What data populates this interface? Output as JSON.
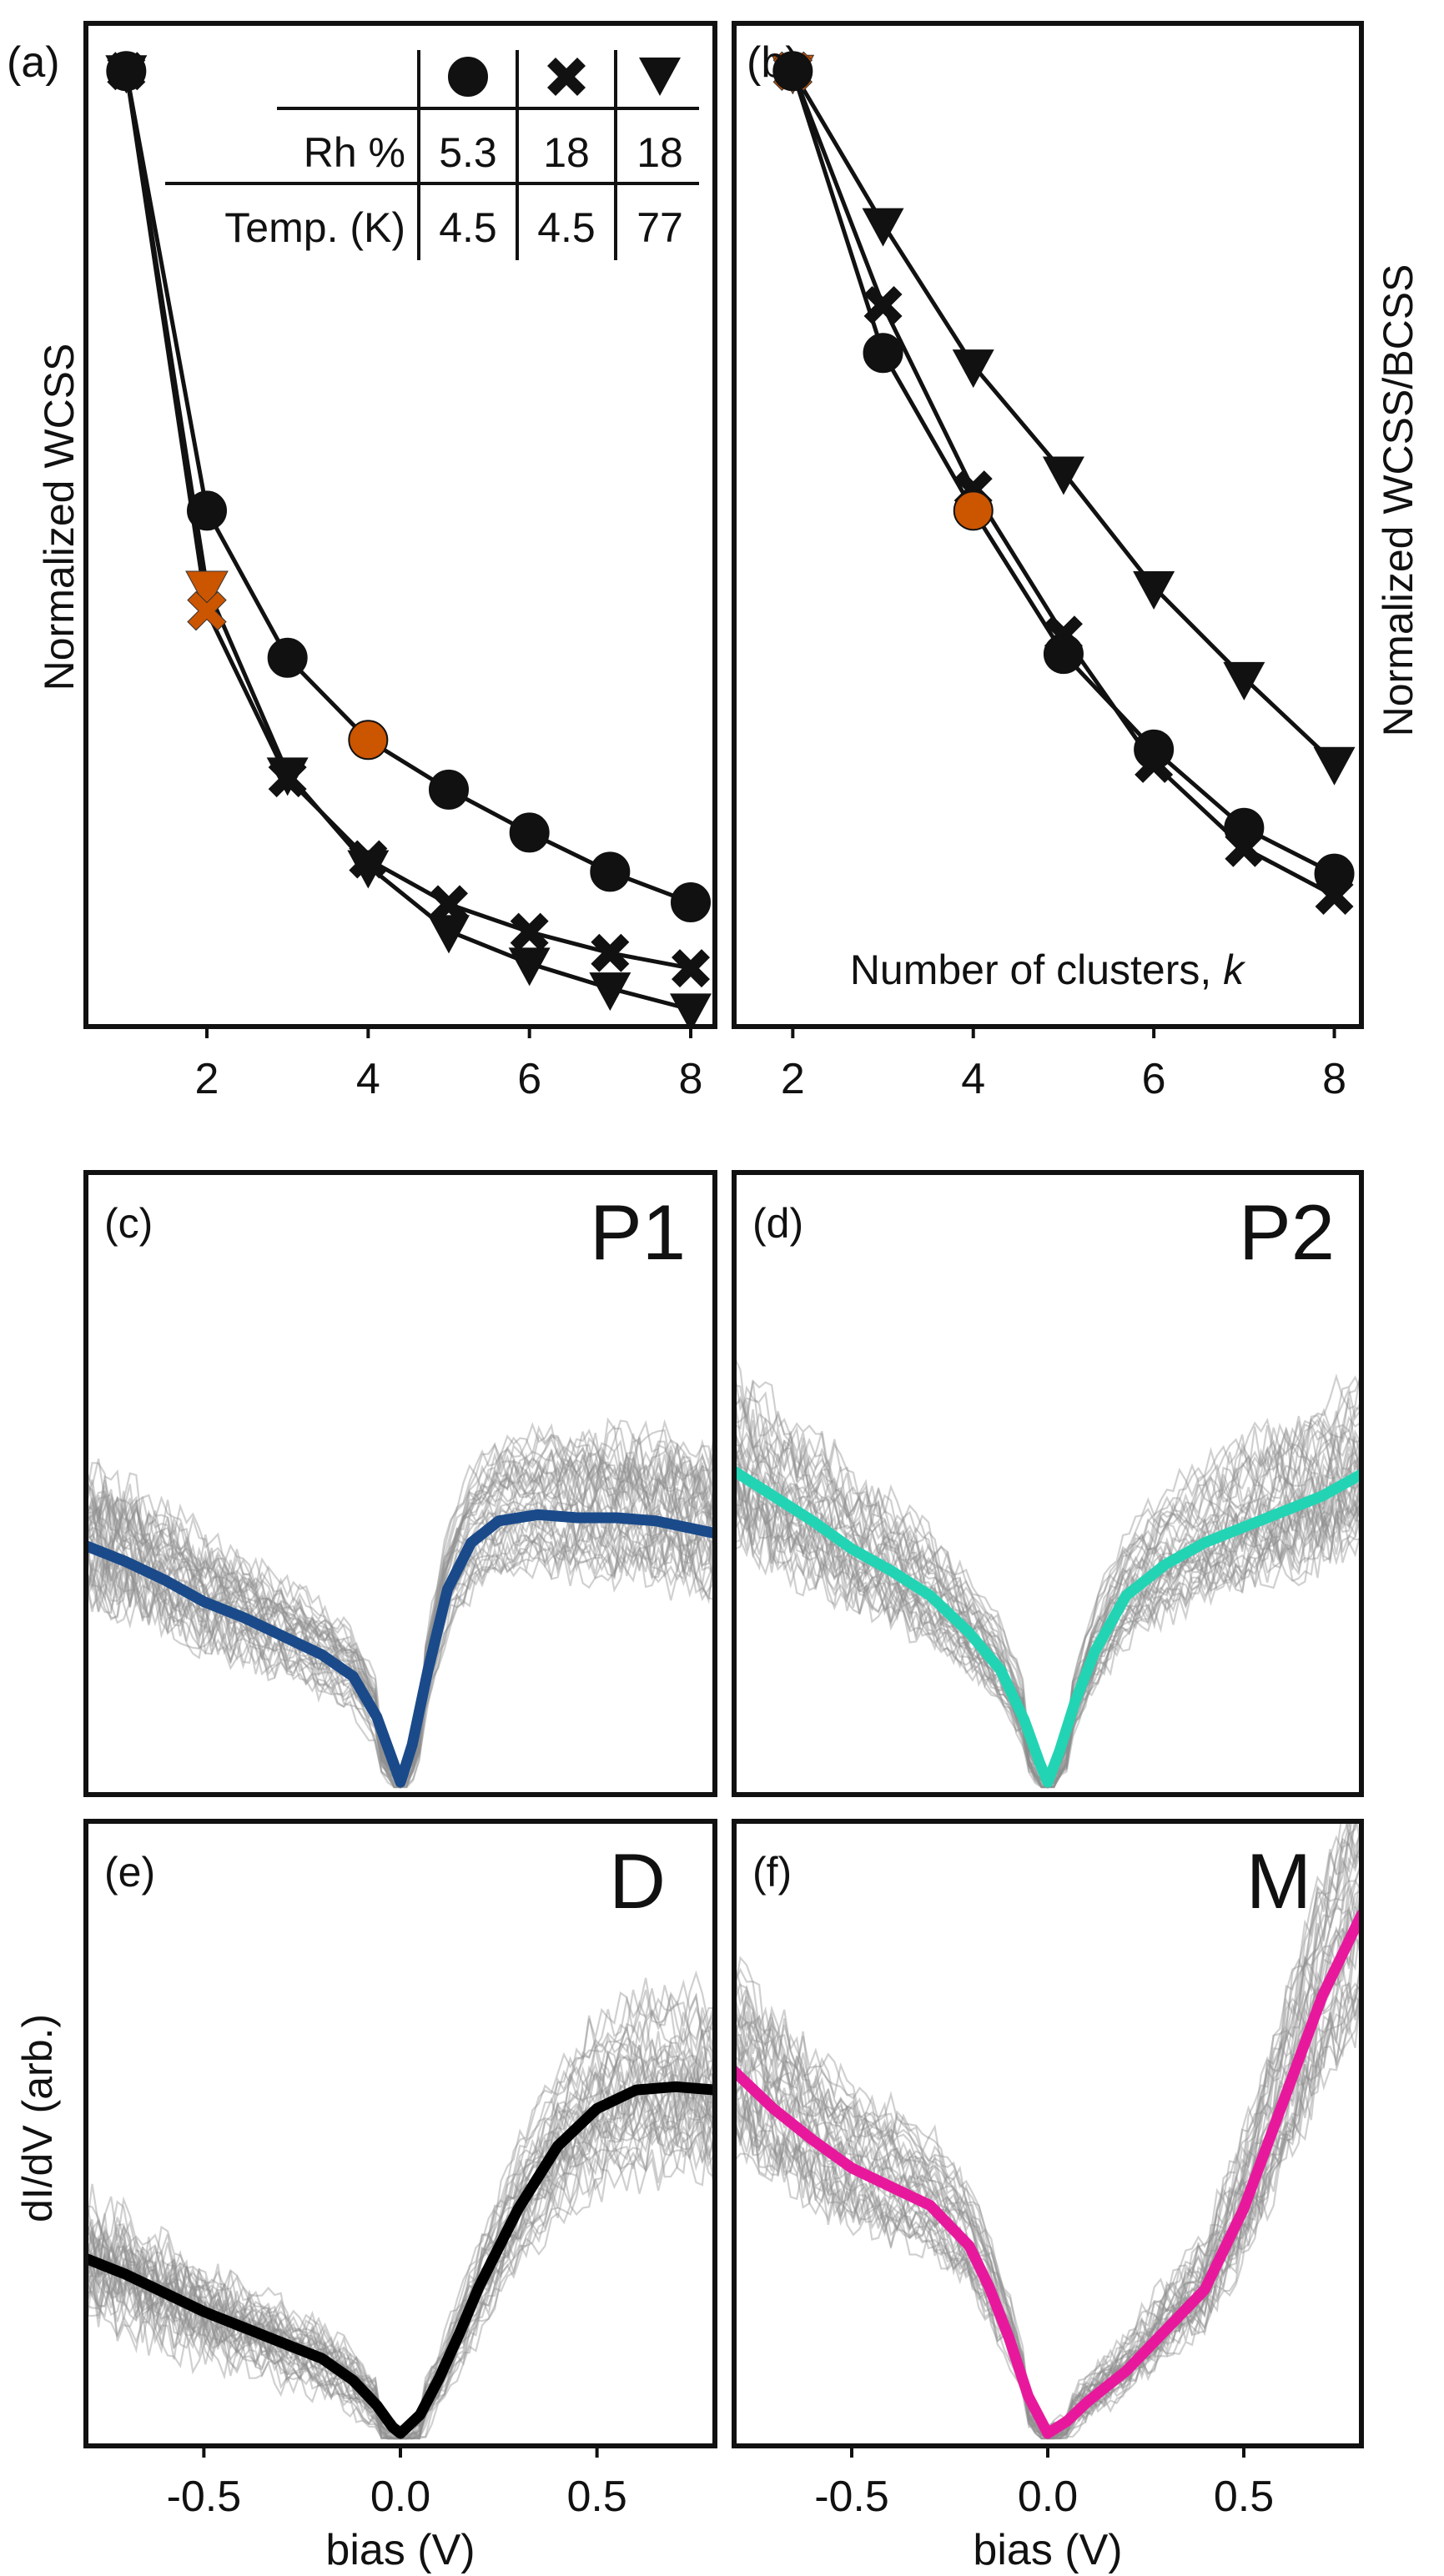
{
  "figure": {
    "panel_a_label": "(a)",
    "panel_b_label": "(b)",
    "panel_c_label": "(c)",
    "panel_d_label": "(d)",
    "panel_e_label": "(e)",
    "panel_f_label": "(f)",
    "a_ylabel": "Normalized WCSS",
    "b_ylabel": "Normalized WCSS/BCSS",
    "b_xlabel_text": "Number of clusters, ",
    "b_xlabel_var": "k",
    "bottom_ylabel": "dI/dV (arb.)",
    "bottom_xlabel": "bias (V)"
  },
  "legend_table": {
    "header_symbols": [
      "circle",
      "cross",
      "triangle-down"
    ],
    "row1_label": "Rh %",
    "row1_values": [
      "5.3",
      "18",
      "18"
    ],
    "row2_label": "Temp. (K)",
    "row2_values": [
      "4.5",
      "4.5",
      "77"
    ]
  },
  "colors": {
    "marker": "#111111",
    "highlight": "#cc5500",
    "P1": "#1a4a8a",
    "P2": "#22d4b4",
    "D": "#000000",
    "M": "#e8189c",
    "gray": "#8f8f8f"
  },
  "chart_data": [
    {
      "type": "line",
      "panel": "a",
      "ylabel": "Normalized WCSS",
      "xlim": [
        0.5,
        8.3
      ],
      "ylim": [
        0.0,
        1.05
      ],
      "xticks": [
        "2",
        "4",
        "6",
        "8"
      ],
      "x": [
        1,
        2,
        3,
        4,
        5,
        6,
        7,
        8
      ],
      "series": [
        {
          "name": "Rh 5.3% 4.5K",
          "marker": "circle",
          "values": [
            1.0,
            0.54,
            0.386,
            0.3,
            0.248,
            0.203,
            0.162,
            0.13
          ],
          "highlight_index": 3
        },
        {
          "name": "Rh 18% 4.5K",
          "marker": "cross",
          "values": [
            1.0,
            0.435,
            0.26,
            0.175,
            0.128,
            0.099,
            0.077,
            0.061
          ],
          "highlight_index": 1
        },
        {
          "name": "Rh 18% 77K",
          "marker": "triangle-down",
          "values": [
            1.0,
            0.46,
            0.265,
            0.168,
            0.1,
            0.066,
            0.04,
            0.018
          ],
          "highlight_index": 1
        }
      ]
    },
    {
      "type": "line",
      "panel": "b",
      "ylabel": "Normalized WCSS/BCSS",
      "xlabel": "Number of clusters, k",
      "xlim": [
        1.35,
        8.3
      ],
      "ylim": [
        0.0,
        1.05
      ],
      "xticks": [
        "2",
        "4",
        "6",
        "8"
      ],
      "x": [
        2,
        3,
        4,
        5,
        6,
        7,
        8
      ],
      "series": [
        {
          "name": "Rh 5.3% 4.5K",
          "marker": "circle",
          "values": [
            1.0,
            0.705,
            0.54,
            0.39,
            0.29,
            0.208,
            0.16
          ],
          "highlight_index": 2
        },
        {
          "name": "Rh 18% 4.5K",
          "marker": "cross",
          "values": [
            1.0,
            0.755,
            0.562,
            0.41,
            0.275,
            0.187,
            0.137
          ],
          "highlight_index": 0
        },
        {
          "name": "Rh 18% 77K",
          "marker": "triangle-down",
          "values": [
            1.0,
            0.84,
            0.692,
            0.58,
            0.46,
            0.365,
            0.276
          ],
          "highlight_index": 0
        }
      ]
    },
    {
      "type": "line",
      "panel": "c",
      "label": "P1",
      "xlim": [
        -0.8,
        0.8
      ],
      "ylim": [
        0.0,
        1.0
      ],
      "mean": {
        "x": [
          -0.8,
          -0.7,
          -0.6,
          -0.5,
          -0.4,
          -0.3,
          -0.2,
          -0.12,
          -0.06,
          -0.02,
          0.0,
          0.03,
          0.07,
          0.12,
          0.18,
          0.25,
          0.35,
          0.45,
          0.55,
          0.65,
          0.8
        ],
        "y": [
          0.4,
          0.375,
          0.345,
          0.31,
          0.285,
          0.255,
          0.225,
          0.19,
          0.125,
          0.055,
          0.02,
          0.08,
          0.2,
          0.33,
          0.405,
          0.44,
          0.45,
          0.445,
          0.445,
          0.44,
          0.42
        ]
      }
    },
    {
      "type": "line",
      "panel": "d",
      "label": "P2",
      "xlim": [
        -0.8,
        0.8
      ],
      "ylim": [
        0.0,
        1.0
      ],
      "mean": {
        "x": [
          -0.8,
          -0.7,
          -0.6,
          -0.5,
          -0.4,
          -0.3,
          -0.2,
          -0.12,
          -0.06,
          -0.02,
          0.0,
          0.03,
          0.07,
          0.12,
          0.2,
          0.3,
          0.4,
          0.5,
          0.6,
          0.7,
          0.8
        ],
        "y": [
          0.52,
          0.48,
          0.44,
          0.395,
          0.36,
          0.32,
          0.26,
          0.2,
          0.12,
          0.05,
          0.02,
          0.07,
          0.15,
          0.23,
          0.32,
          0.37,
          0.405,
          0.43,
          0.455,
          0.48,
          0.515
        ]
      }
    },
    {
      "type": "line",
      "panel": "e",
      "label": "D",
      "xlim": [
        -0.8,
        0.8
      ],
      "ylim": [
        0.0,
        1.0
      ],
      "mean": {
        "x": [
          -0.8,
          -0.7,
          -0.6,
          -0.5,
          -0.4,
          -0.3,
          -0.2,
          -0.12,
          -0.06,
          -0.02,
          0.0,
          0.05,
          0.1,
          0.15,
          0.2,
          0.3,
          0.4,
          0.5,
          0.6,
          0.7,
          0.8
        ],
        "y": [
          0.3,
          0.275,
          0.245,
          0.215,
          0.19,
          0.165,
          0.14,
          0.105,
          0.065,
          0.03,
          0.02,
          0.05,
          0.11,
          0.18,
          0.255,
          0.38,
          0.48,
          0.54,
          0.57,
          0.575,
          0.57
        ]
      }
    },
    {
      "type": "line",
      "panel": "f",
      "label": "M",
      "xlim": [
        -0.8,
        0.8
      ],
      "ylim": [
        0.0,
        1.0
      ],
      "mean": {
        "x": [
          -0.8,
          -0.7,
          -0.6,
          -0.5,
          -0.4,
          -0.3,
          -0.2,
          -0.15,
          -0.1,
          -0.05,
          0.0,
          0.05,
          0.1,
          0.2,
          0.3,
          0.4,
          0.5,
          0.6,
          0.7,
          0.8
        ],
        "y": [
          0.6,
          0.54,
          0.49,
          0.445,
          0.415,
          0.385,
          0.32,
          0.255,
          0.175,
          0.08,
          0.02,
          0.04,
          0.07,
          0.12,
          0.185,
          0.25,
          0.38,
          0.55,
          0.72,
          0.85
        ]
      }
    }
  ]
}
